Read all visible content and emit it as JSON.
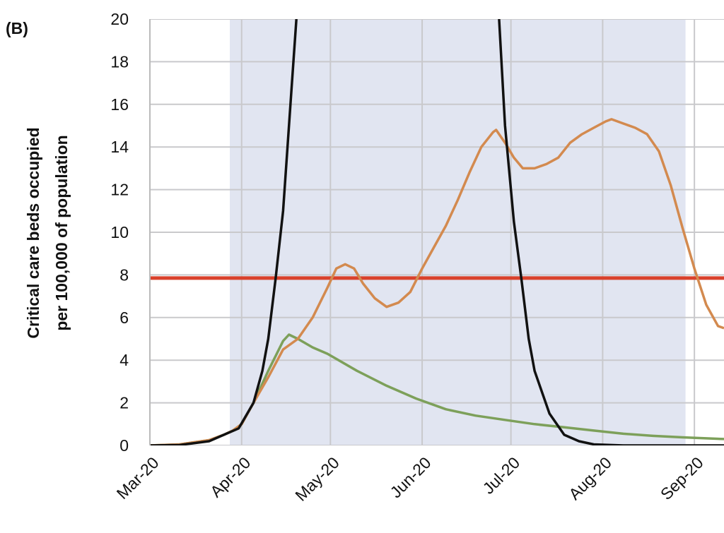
{
  "chart_data": {
    "type": "line",
    "panel_label": "(B)",
    "y_label": [
      "Critical care beds occupied",
      "per 100,000 of population"
    ],
    "xlim": [
      0,
      194
    ],
    "xticks": [
      {
        "value": 0,
        "label": "Mar-20"
      },
      {
        "value": 31,
        "label": "Apr-20"
      },
      {
        "value": 61,
        "label": "May-20"
      },
      {
        "value": 92,
        "label": "Jun-20"
      },
      {
        "value": 122,
        "label": "Jul-20"
      },
      {
        "value": 153,
        "label": "Aug-20"
      },
      {
        "value": 184,
        "label": "Sep-20"
      }
    ],
    "ylim": [
      0,
      20
    ],
    "yticks": [
      0,
      2,
      4,
      6,
      8,
      10,
      12,
      14,
      16,
      18,
      20
    ],
    "grid": true,
    "shaded_region": {
      "x": [
        27,
        181
      ],
      "color": "#e1e5f1"
    },
    "reference_line": {
      "value": 7.85,
      "color": "#d9412b"
    },
    "series": [
      {
        "color": "#7da05a",
        "x": [
          0,
          10,
          15,
          20,
          25,
          28,
          31,
          35,
          40,
          45,
          47,
          50,
          55,
          60,
          70,
          80,
          90,
          100,
          110,
          120,
          130,
          140,
          150,
          160,
          170,
          180,
          194
        ],
        "values": [
          0,
          0.05,
          0.15,
          0.25,
          0.5,
          0.7,
          1.0,
          2.0,
          3.5,
          4.9,
          5.2,
          5.0,
          4.6,
          4.3,
          3.5,
          2.8,
          2.2,
          1.7,
          1.4,
          1.2,
          1.0,
          0.85,
          0.7,
          0.55,
          0.45,
          0.38,
          0.3
        ]
      },
      {
        "color": "#d38a4f",
        "x": [
          0,
          10,
          15,
          20,
          25,
          28,
          31,
          35,
          40,
          45,
          50,
          55,
          60,
          63,
          66,
          69,
          72,
          76,
          80,
          84,
          88,
          92,
          96,
          100,
          104,
          108,
          112,
          116,
          117,
          120,
          123,
          126,
          130,
          134,
          138,
          142,
          146,
          150,
          154,
          156,
          160,
          164,
          168,
          172,
          176,
          180,
          184,
          188,
          192,
          194
        ],
        "values": [
          0,
          0.05,
          0.15,
          0.25,
          0.5,
          0.7,
          1.0,
          2.0,
          3.2,
          4.5,
          5.0,
          6.0,
          7.4,
          8.3,
          8.5,
          8.3,
          7.6,
          6.9,
          6.5,
          6.7,
          7.2,
          8.3,
          9.3,
          10.3,
          11.5,
          12.8,
          14.0,
          14.7,
          14.8,
          14.2,
          13.5,
          13.0,
          13.0,
          13.2,
          13.5,
          14.2,
          14.6,
          14.9,
          15.2,
          15.3,
          15.1,
          14.9,
          14.6,
          13.8,
          12.2,
          10.2,
          8.3,
          6.6,
          5.6,
          5.5
        ]
      },
      {
        "color": "#111111",
        "x": [
          0,
          10,
          20,
          25,
          30,
          35,
          38,
          40,
          42.5,
          45,
          48,
          49.5,
          80,
          118,
          120,
          123,
          125.5,
          128,
          130,
          135,
          140,
          145,
          150,
          160,
          194
        ],
        "values": [
          0,
          0.02,
          0.2,
          0.5,
          0.8,
          2.0,
          3.5,
          5.0,
          7.85,
          11,
          17,
          20,
          null,
          20,
          15,
          10.5,
          7.85,
          5.0,
          3.5,
          1.5,
          0.5,
          0.2,
          0.05,
          0,
          0
        ]
      }
    ]
  }
}
